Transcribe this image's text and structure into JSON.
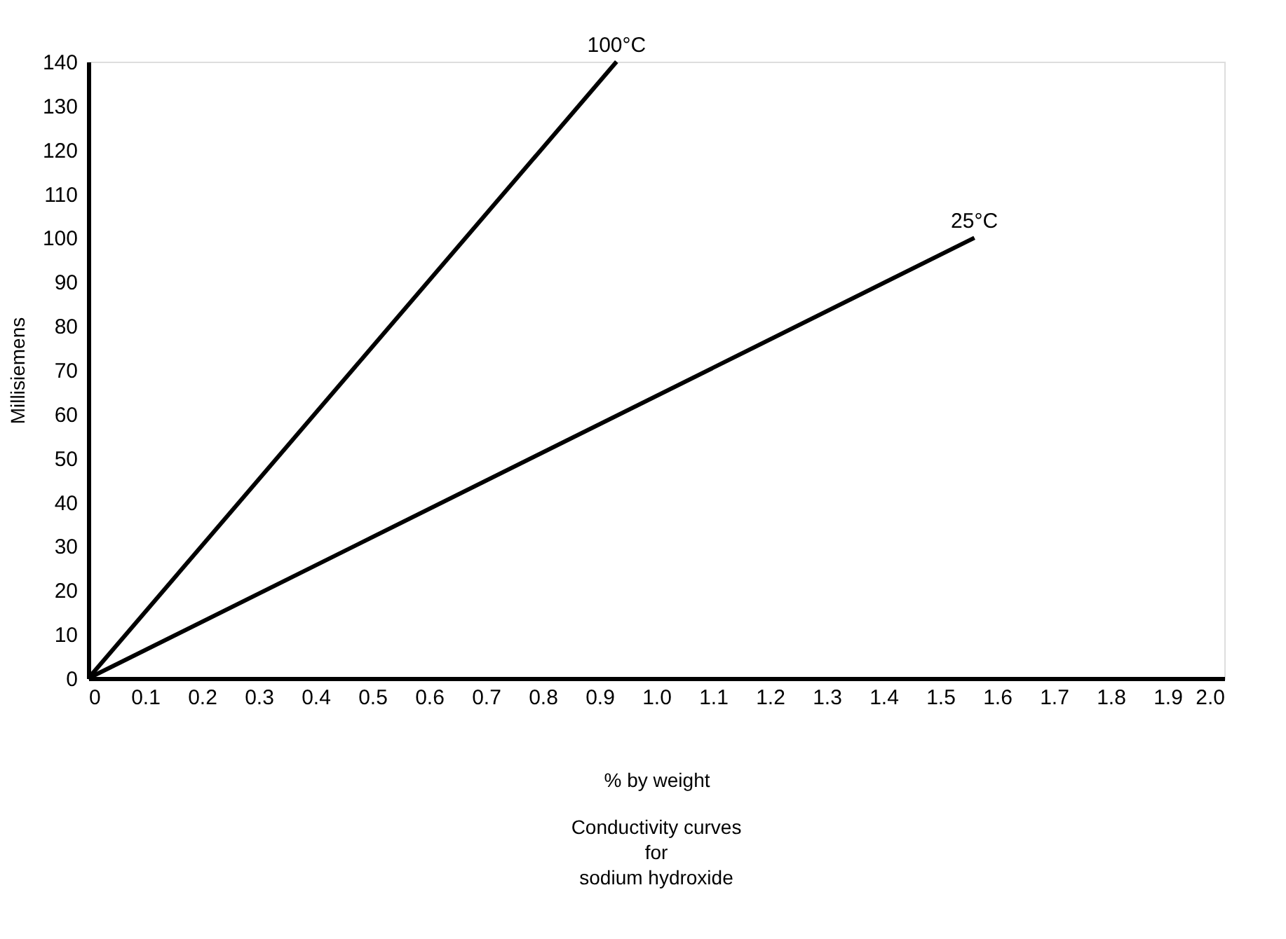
{
  "chart_data": {
    "type": "line",
    "title": "Conductivity curves\nfor\nsodium hydroxide",
    "xlabel": "% by weight",
    "ylabel": "Millisiemens",
    "series": [
      {
        "name": "100°C",
        "color": "#000000",
        "x": [
          0,
          0.93
        ],
        "values": [
          0,
          140
        ]
      },
      {
        "name": "25°C",
        "color": "#000000",
        "x": [
          0,
          1.56
        ],
        "values": [
          0,
          100
        ]
      }
    ],
    "xlim": [
      0,
      2.0
    ],
    "xticks": [
      0,
      0.1,
      0.2,
      0.3,
      0.4,
      0.5,
      0.6,
      0.7,
      0.8,
      0.9,
      {
        "value": 1.0,
        "label": "1.0"
      },
      1.1,
      1.2,
      1.3,
      1.4,
      1.5,
      1.6,
      1.7,
      1.8,
      1.9,
      {
        "value": 2.0,
        "label": "2.0"
      }
    ],
    "ylim": [
      0,
      140
    ],
    "yticks": [
      0,
      10,
      20,
      30,
      40,
      50,
      60,
      70,
      80,
      90,
      100,
      110,
      120,
      130,
      140
    ],
    "grid": false,
    "legend": false,
    "marker": "none",
    "line_style": "solid"
  }
}
